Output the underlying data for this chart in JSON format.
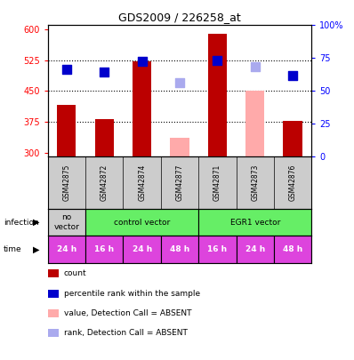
{
  "title": "GDS2009 / 226258_at",
  "samples": [
    "GSM42875",
    "GSM42872",
    "GSM42874",
    "GSM42877",
    "GSM42871",
    "GSM42873",
    "GSM42876"
  ],
  "bar_values": [
    415,
    382,
    522,
    null,
    590,
    null,
    378
  ],
  "bar_absent_values": [
    null,
    null,
    null,
    335,
    null,
    450,
    null
  ],
  "dot_values": [
    502,
    497,
    521,
    null,
    524,
    null,
    487
  ],
  "dot_absent_values": [
    null,
    null,
    null,
    470,
    null,
    510,
    null
  ],
  "bar_color": "#bb0000",
  "bar_absent_color": "#ffaaaa",
  "dot_color": "#0000cc",
  "dot_absent_color": "#aaaaee",
  "ylim_left": [
    290,
    610
  ],
  "ylim_right": [
    0,
    100
  ],
  "yticks_left": [
    300,
    375,
    450,
    525,
    600
  ],
  "yticks_right": [
    0,
    25,
    50,
    75,
    100
  ],
  "ytick_labels_left": [
    "300",
    "375",
    "450",
    "525",
    "600"
  ],
  "ytick_labels_right": [
    "0",
    "25",
    "50",
    "75",
    "100%"
  ],
  "hlines": [
    375,
    450,
    525
  ],
  "time_labels": [
    "24 h",
    "16 h",
    "24 h",
    "48 h",
    "16 h",
    "24 h",
    "48 h"
  ],
  "time_color": "#dd44dd",
  "legend_items": [
    {
      "label": "count",
      "color": "#bb0000"
    },
    {
      "label": "percentile rank within the sample",
      "color": "#0000cc"
    },
    {
      "label": "value, Detection Call = ABSENT",
      "color": "#ffaaaa"
    },
    {
      "label": "rank, Detection Call = ABSENT",
      "color": "#aaaaee"
    }
  ],
  "bar_width": 0.5,
  "dot_size": 60,
  "background_color": "#ffffff"
}
